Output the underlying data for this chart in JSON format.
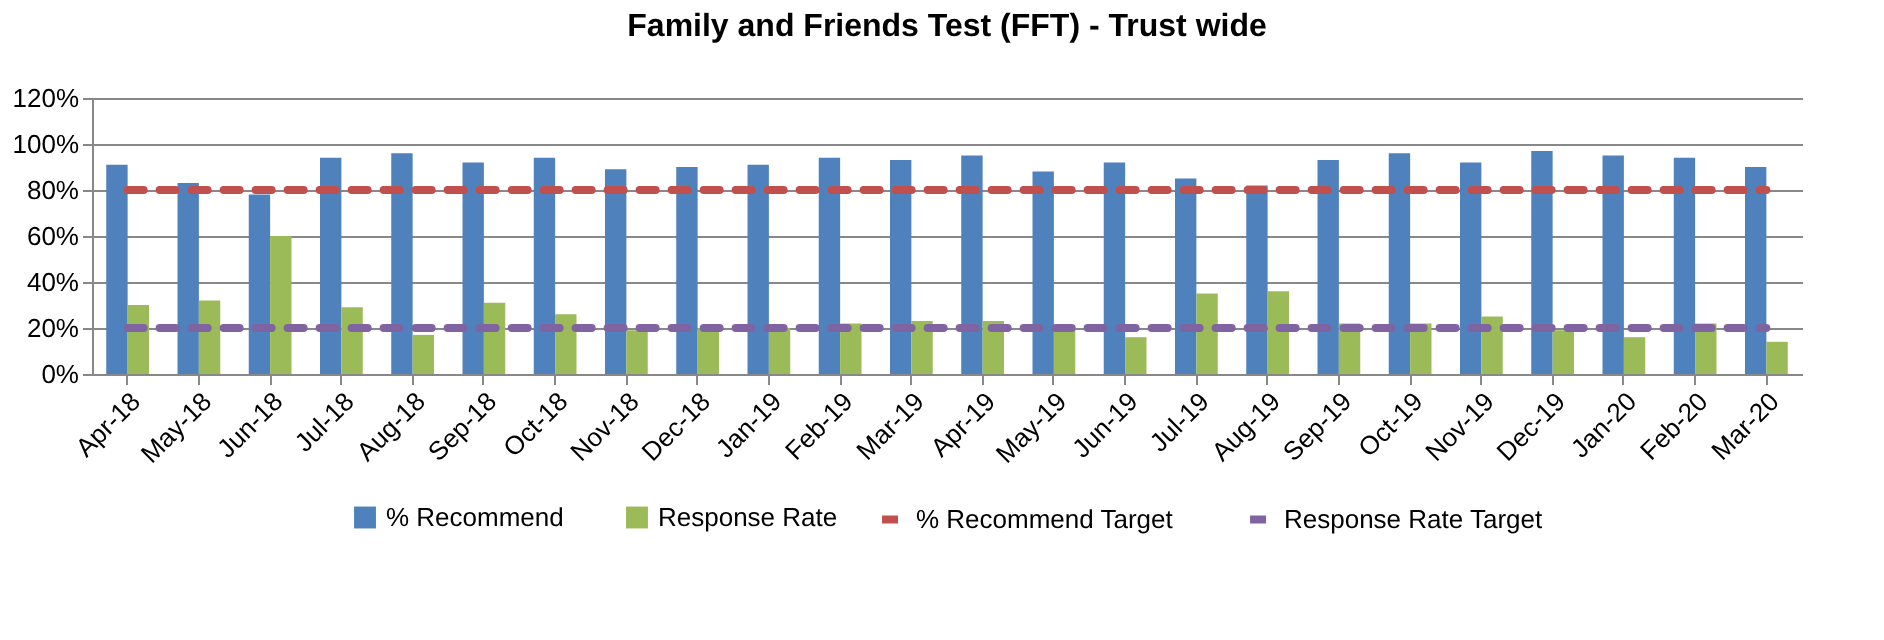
{
  "chart_data": {
    "type": "bar",
    "title": "Family and Friends Test (FFT) - Trust wide",
    "categories": [
      "Apr-18",
      "May-18",
      "Jun-18",
      "Jul-18",
      "Aug-18",
      "Sep-18",
      "Oct-18",
      "Nov-18",
      "Dec-18",
      "Jan-19",
      "Feb-19",
      "Mar-19",
      "Apr-19",
      "May-19",
      "Jun-19",
      "Jul-19",
      "Aug-19",
      "Sep-19",
      "Oct-19",
      "Nov-19",
      "Dec-19",
      "Jan-20",
      "Feb-20",
      "Mar-20"
    ],
    "series": [
      {
        "name": "% Recommend",
        "color": "#4f81bd",
        "values": [
          91,
          83,
          78,
          94,
          96,
          92,
          94,
          89,
          90,
          91,
          94,
          93,
          95,
          88,
          92,
          85,
          82,
          93,
          96,
          92,
          97,
          95,
          94,
          90
        ]
      },
      {
        "name": "Response Rate",
        "color": "#9bbb59",
        "values": [
          30,
          32,
          60,
          29,
          17,
          31,
          26,
          19,
          20,
          20,
          22,
          23,
          23,
          21,
          16,
          35,
          36,
          22,
          22,
          25,
          19,
          16,
          22,
          14
        ]
      },
      {
        "name": "% Recommend Target",
        "type": "line",
        "line_style": "dashed",
        "color": "#c0504d",
        "values": [
          80,
          80,
          80,
          80,
          80,
          80,
          80,
          80,
          80,
          80,
          80,
          80,
          80,
          80,
          80,
          80,
          80,
          80,
          80,
          80,
          80,
          80,
          80,
          80
        ]
      },
      {
        "name": "Response Rate Target",
        "type": "line",
        "line_style": "dashed",
        "color": "#8064a2",
        "values": [
          20,
          20,
          20,
          20,
          20,
          20,
          20,
          20,
          20,
          20,
          20,
          20,
          20,
          20,
          20,
          20,
          20,
          20,
          20,
          20,
          20,
          20,
          20,
          20
        ]
      }
    ],
    "ylim": [
      0,
      120
    ],
    "yticks": [
      {
        "value": 0,
        "label": "0%"
      },
      {
        "value": 20,
        "label": "20%"
      },
      {
        "value": 40,
        "label": "40%"
      },
      {
        "value": 60,
        "label": "60%"
      },
      {
        "value": 80,
        "label": "80%"
      },
      {
        "value": 100,
        "label": "100%"
      },
      {
        "value": 120,
        "label": "120%"
      }
    ],
    "grid": "y",
    "legend": "bottom"
  }
}
